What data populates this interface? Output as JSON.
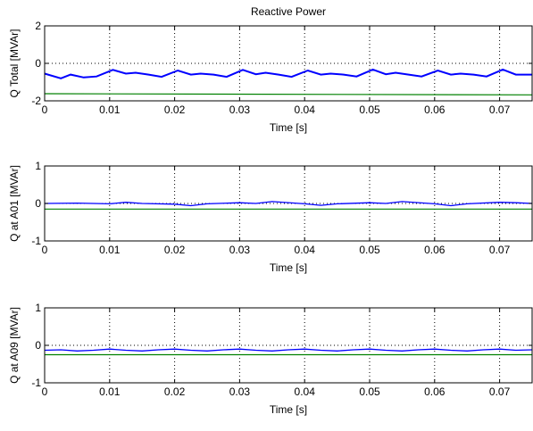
{
  "chart_data": [
    {
      "type": "line",
      "title": "Reactive Power",
      "xlabel": "Time [s]",
      "ylabel": "Q Total [MVAr]",
      "xlim": [
        0,
        0.075
      ],
      "ylim": [
        -2,
        2
      ],
      "xticks": [
        "0",
        "0.01",
        "0.02",
        "0.03",
        "0.04",
        "0.05",
        "0.06",
        "0.07"
      ],
      "yticks": [
        "-2",
        "0",
        "2"
      ],
      "grid": true,
      "series": [
        {
          "color": "#0000ff",
          "x": [
            0,
            0.0025,
            0.004,
            0.006,
            0.008,
            0.0105,
            0.0125,
            0.014,
            0.016,
            0.018,
            0.0205,
            0.0225,
            0.024,
            0.026,
            0.028,
            0.0305,
            0.0325,
            0.034,
            0.036,
            0.038,
            0.0405,
            0.0425,
            0.044,
            0.046,
            0.048,
            0.0505,
            0.0525,
            0.054,
            0.056,
            0.058,
            0.0605,
            0.0625,
            0.064,
            0.066,
            0.068,
            0.0705,
            0.0725,
            0.075
          ],
          "values": [
            -0.55,
            -0.8,
            -0.6,
            -0.75,
            -0.7,
            -0.35,
            -0.55,
            -0.5,
            -0.6,
            -0.72,
            -0.38,
            -0.6,
            -0.55,
            -0.6,
            -0.72,
            -0.35,
            -0.58,
            -0.5,
            -0.6,
            -0.72,
            -0.38,
            -0.6,
            -0.55,
            -0.6,
            -0.7,
            -0.33,
            -0.58,
            -0.5,
            -0.6,
            -0.7,
            -0.38,
            -0.6,
            -0.55,
            -0.6,
            -0.7,
            -0.33,
            -0.6,
            -0.6
          ]
        },
        {
          "color": "#008000",
          "x": [
            0,
            0.075
          ],
          "values": [
            -1.62,
            -1.68
          ]
        }
      ]
    },
    {
      "type": "line",
      "xlabel": "Time [s]",
      "ylabel": "Q at A01 [MVAr]",
      "xlim": [
        0,
        0.075
      ],
      "ylim": [
        -1,
        1
      ],
      "xticks": [
        "0",
        "0.01",
        "0.02",
        "0.03",
        "0.04",
        "0.05",
        "0.06",
        "0.07"
      ],
      "yticks": [
        "-1",
        "0",
        "1"
      ],
      "grid": true,
      "series": [
        {
          "color": "#0000ff",
          "x": [
            0,
            0.005,
            0.01,
            0.0125,
            0.015,
            0.02,
            0.0225,
            0.025,
            0.03,
            0.0325,
            0.035,
            0.04,
            0.0425,
            0.045,
            0.05,
            0.0525,
            0.055,
            0.06,
            0.0625,
            0.065,
            0.07,
            0.0725,
            0.075
          ],
          "values": [
            0.0,
            0.01,
            -0.01,
            0.03,
            0.0,
            -0.02,
            -0.06,
            -0.01,
            0.02,
            0.0,
            0.05,
            -0.01,
            -0.05,
            -0.01,
            0.02,
            0.0,
            0.05,
            -0.01,
            -0.06,
            -0.01,
            0.03,
            0.02,
            0.0
          ]
        },
        {
          "color": "#008000",
          "x": [
            0,
            0.075
          ],
          "values": [
            -0.15,
            -0.15
          ]
        }
      ]
    },
    {
      "type": "line",
      "xlabel": "Time [s]",
      "ylabel": "Q at A09 [MVAr]",
      "xlim": [
        0,
        0.075
      ],
      "ylim": [
        -1,
        1
      ],
      "xticks": [
        "0",
        "0.01",
        "0.02",
        "0.03",
        "0.04",
        "0.05",
        "0.06",
        "0.07"
      ],
      "yticks": [
        "-1",
        "0",
        "1"
      ],
      "grid": true,
      "series": [
        {
          "color": "#0000ff",
          "x": [
            0,
            0.0025,
            0.005,
            0.0075,
            0.01,
            0.0125,
            0.015,
            0.0175,
            0.02,
            0.0225,
            0.025,
            0.0275,
            0.03,
            0.0325,
            0.035,
            0.0375,
            0.04,
            0.0425,
            0.045,
            0.0475,
            0.05,
            0.0525,
            0.055,
            0.0575,
            0.06,
            0.0625,
            0.065,
            0.0675,
            0.07,
            0.0725,
            0.075
          ],
          "values": [
            -0.13,
            -0.12,
            -0.15,
            -0.13,
            -0.1,
            -0.13,
            -0.15,
            -0.12,
            -0.1,
            -0.13,
            -0.15,
            -0.12,
            -0.1,
            -0.13,
            -0.15,
            -0.12,
            -0.1,
            -0.13,
            -0.15,
            -0.12,
            -0.1,
            -0.13,
            -0.15,
            -0.12,
            -0.1,
            -0.13,
            -0.15,
            -0.12,
            -0.1,
            -0.13,
            -0.12
          ]
        },
        {
          "color": "#008000",
          "x": [
            0,
            0.075
          ],
          "values": [
            -0.25,
            -0.25
          ]
        }
      ]
    }
  ]
}
